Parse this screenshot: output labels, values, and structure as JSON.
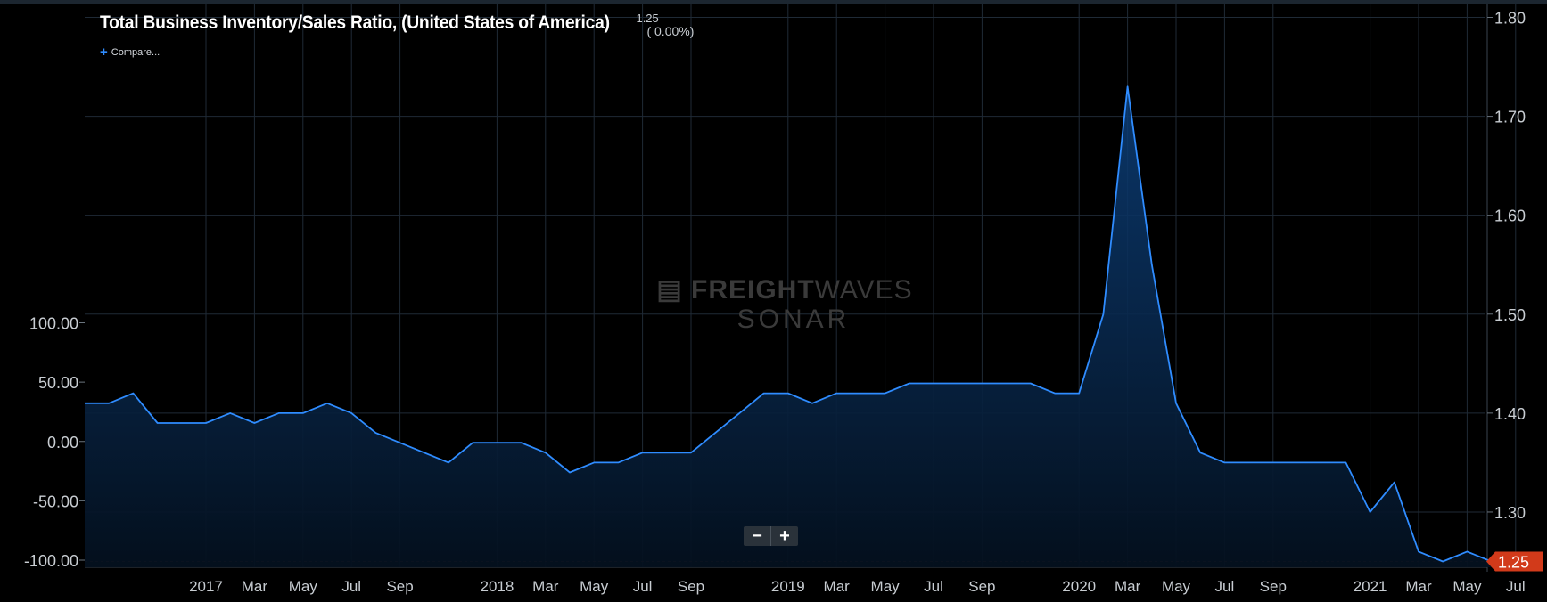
{
  "header": {
    "title": "Total Business Inventory/Sales Ratio, (United States of America)",
    "last_value": "1.25",
    "change": "( 0.00%)",
    "compare_label": "Compare..."
  },
  "watermark": {
    "brand_bold": "FREIGHT",
    "brand_thin": "WAVES",
    "product": "SONAR"
  },
  "zoom": {
    "minus": "−",
    "plus": "+"
  },
  "colors": {
    "line": "#2f8cff",
    "grid": "#1f2a36",
    "tick_text": "#c8cdd2",
    "last_value_flag": "#d23a1a"
  },
  "chart_data": {
    "type": "area",
    "title": "Total Business Inventory/Sales Ratio, (United States of America)",
    "x": [
      "2016-08",
      "2016-09",
      "2016-10",
      "2016-11",
      "2016-12",
      "2017-01",
      "2017-02",
      "2017-03",
      "2017-04",
      "2017-05",
      "2017-06",
      "2017-07",
      "2017-08",
      "2017-09",
      "2017-10",
      "2017-11",
      "2017-12",
      "2018-01",
      "2018-02",
      "2018-03",
      "2018-04",
      "2018-05",
      "2018-06",
      "2018-07",
      "2018-08",
      "2018-09",
      "2018-10",
      "2018-11",
      "2018-12",
      "2019-01",
      "2019-02",
      "2019-03",
      "2019-04",
      "2019-05",
      "2019-06",
      "2019-07",
      "2019-08",
      "2019-09",
      "2019-10",
      "2019-11",
      "2019-12",
      "2020-01",
      "2020-02",
      "2020-03",
      "2020-04",
      "2020-05",
      "2020-06",
      "2020-07",
      "2020-08",
      "2020-09",
      "2020-10",
      "2020-11",
      "2020-12",
      "2021-01",
      "2021-02",
      "2021-03",
      "2021-04",
      "2021-05",
      "2021-06",
      "2021-07"
    ],
    "series": [
      {
        "values": [
          1.41,
          1.41,
          1.42,
          1.39,
          1.39,
          1.39,
          1.4,
          1.39,
          1.4,
          1.4,
          1.41,
          1.4,
          1.38,
          1.37,
          1.36,
          1.35,
          1.37,
          1.37,
          1.37,
          1.36,
          1.34,
          1.35,
          1.35,
          1.36,
          1.36,
          1.36,
          1.38,
          1.4,
          1.42,
          1.42,
          1.41,
          1.42,
          1.42,
          1.42,
          1.43,
          1.43,
          1.43,
          1.43,
          1.43,
          1.43,
          1.42,
          1.42,
          1.5,
          1.73,
          1.55,
          1.41,
          1.36,
          1.35,
          1.35,
          1.35,
          1.35,
          1.35,
          1.35,
          1.3,
          1.33,
          1.26,
          1.25,
          1.26,
          1.25,
          1.25
        ]
      }
    ],
    "y_right": {
      "range": [
        1.25,
        1.8
      ],
      "ticks": [
        "1.80",
        "1.70",
        "1.60",
        "1.50",
        "1.40",
        "1.30",
        "1.25"
      ]
    },
    "y_left": {
      "range": [
        -100,
        100
      ],
      "ticks": [
        "100.00",
        "50.00",
        "0.00",
        "-50.00",
        "-100.00"
      ]
    },
    "x_ticks": [
      "2017",
      "Mar",
      "May",
      "Jul",
      "Sep",
      "2018",
      "Mar",
      "May",
      "Jul",
      "Sep",
      "2019",
      "Mar",
      "May",
      "Jul",
      "Sep",
      "2020",
      "Mar",
      "May",
      "Jul",
      "Sep",
      "2021",
      "Mar",
      "May",
      "Jul"
    ],
    "grid": true,
    "last_value_flag": "1.25"
  }
}
